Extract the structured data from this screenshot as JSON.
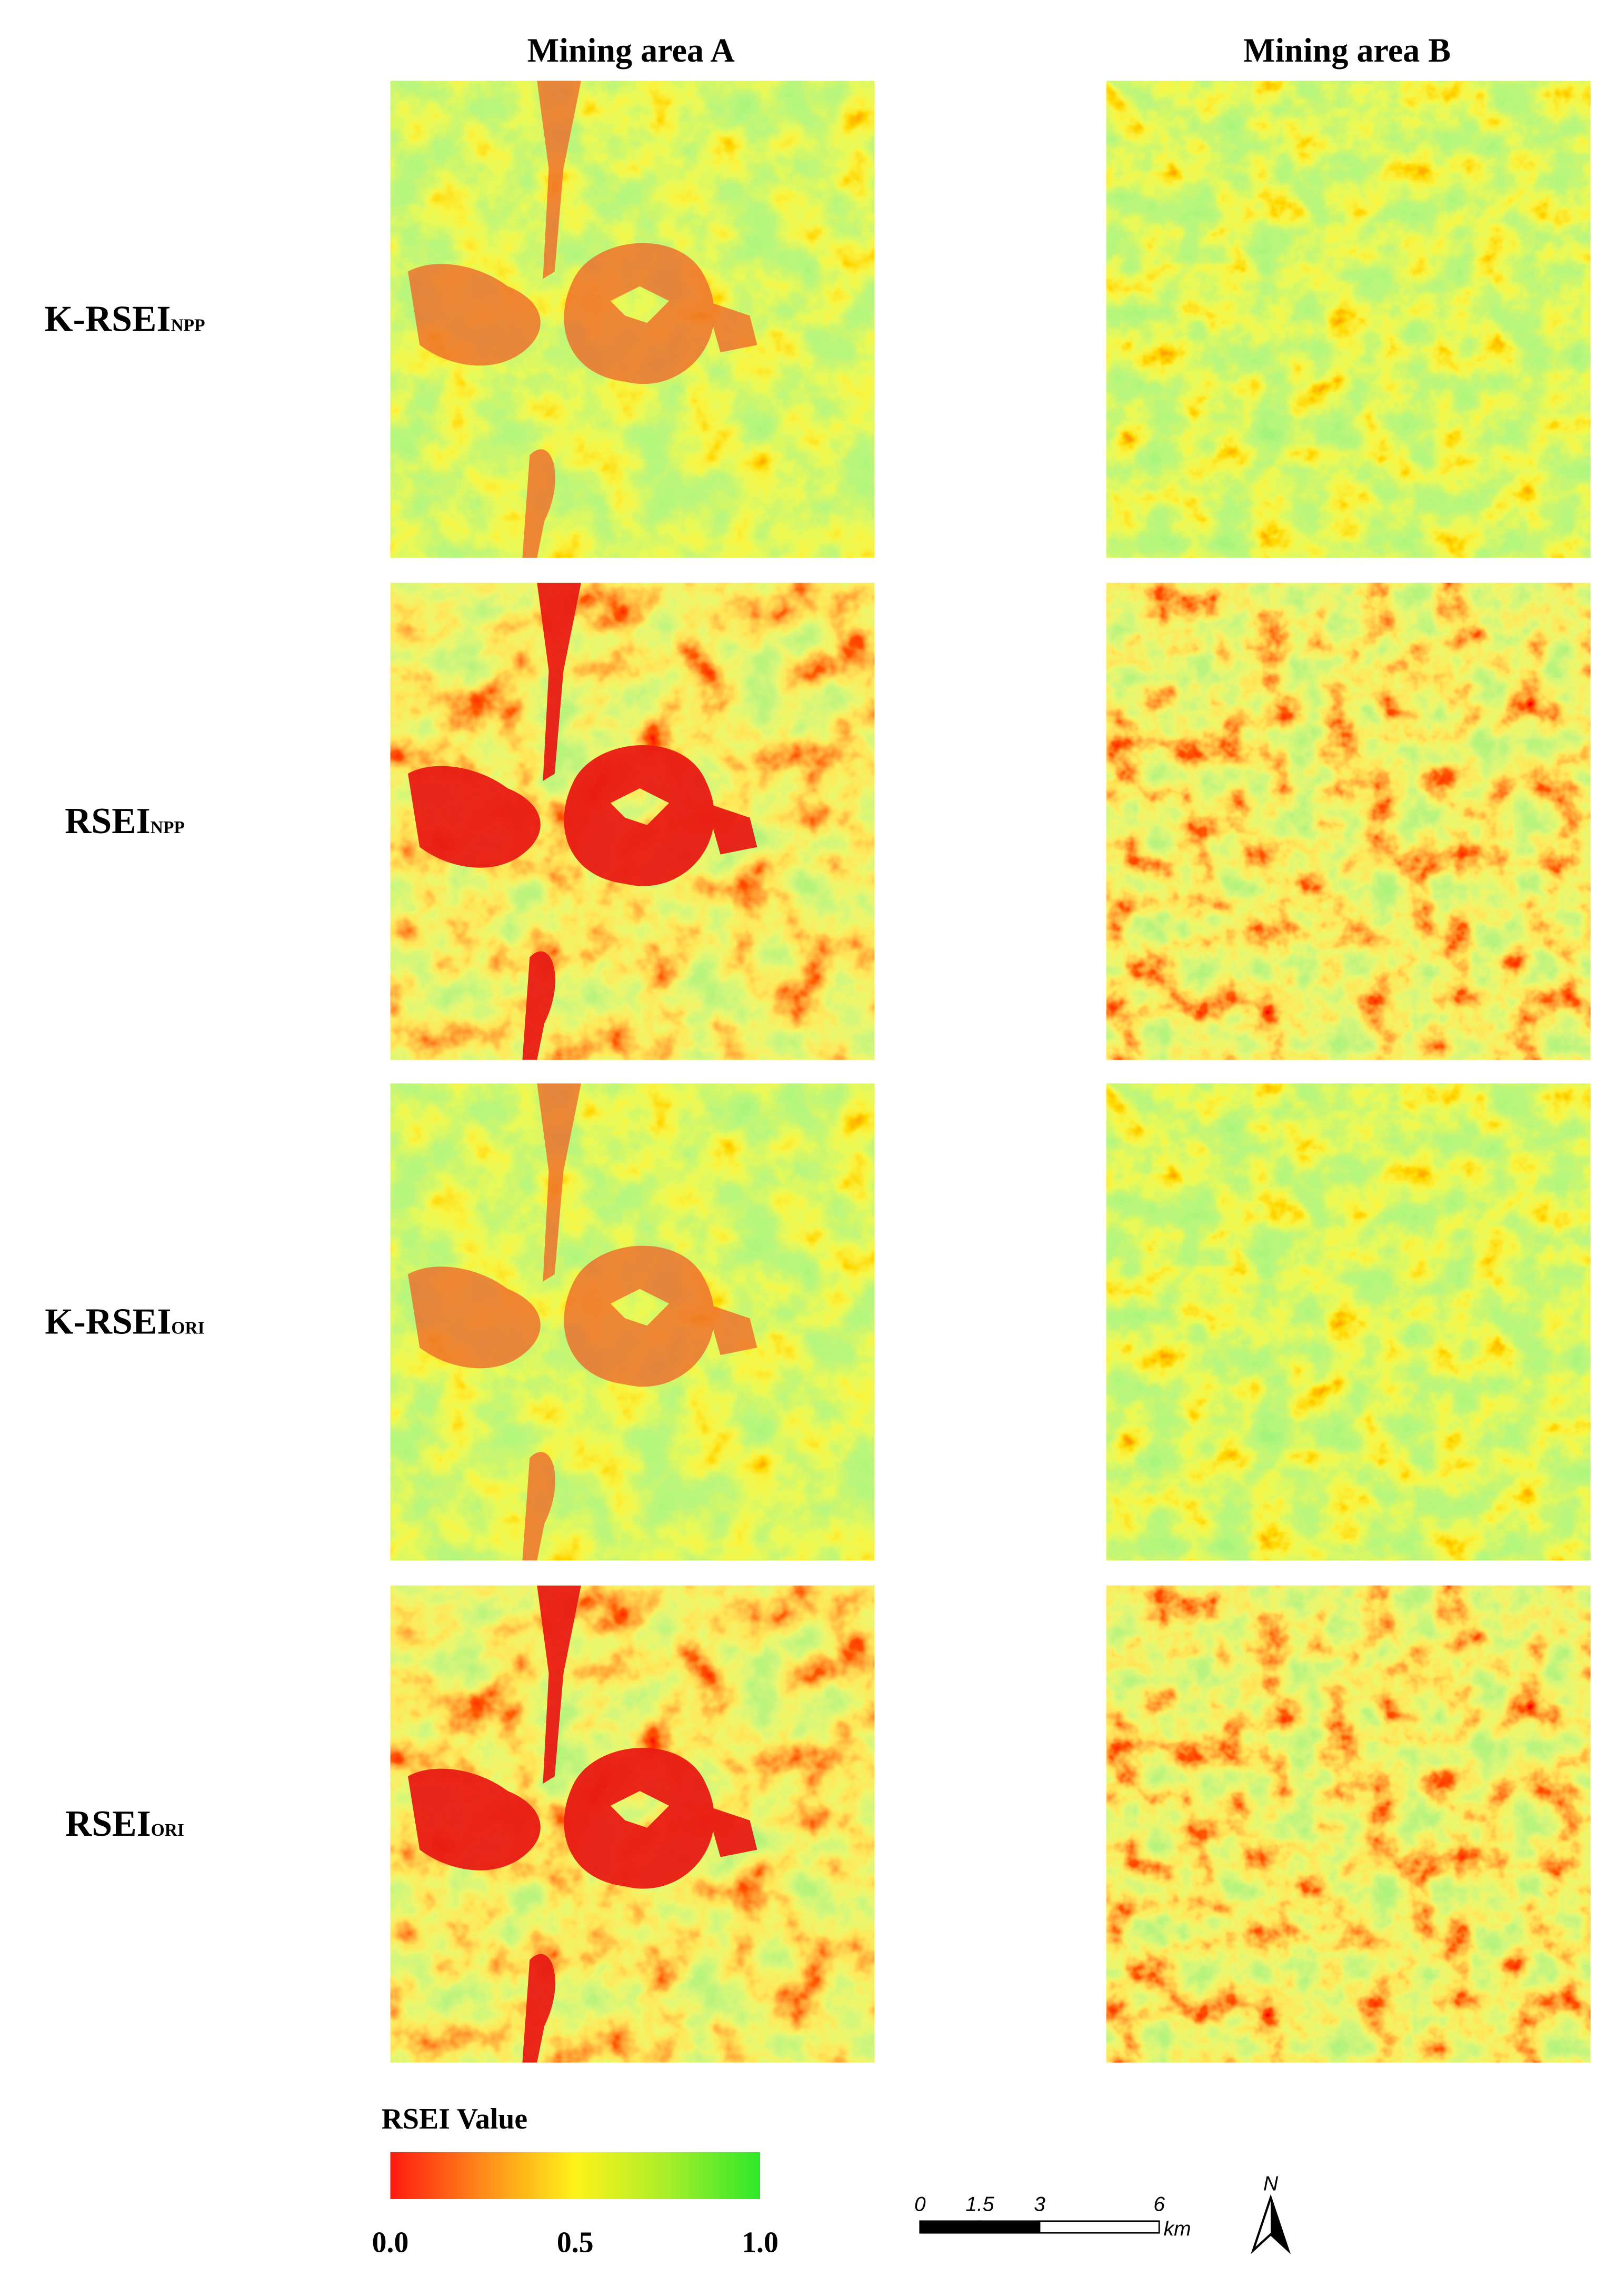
{
  "columns": [
    "Mining area A",
    "Mining area B"
  ],
  "rows": [
    {
      "label": "K-RSEI",
      "subscript": "NPP"
    },
    {
      "label": "RSEI",
      "subscript": "NPP"
    },
    {
      "label": "K-RSEI",
      "subscript": "ORI"
    },
    {
      "label": "RSEI",
      "subscript": "ORI"
    }
  ],
  "legend": {
    "title": "RSEI Value",
    "ticks": [
      {
        "value": 0,
        "label": "0.0"
      },
      {
        "value": 0.5,
        "label": "0.5"
      },
      {
        "value": 1,
        "label": "1.0"
      }
    ]
  },
  "scale_bar": {
    "ticks": [
      0,
      1.5,
      3,
      6
    ],
    "unit": "km"
  },
  "north": "N"
}
